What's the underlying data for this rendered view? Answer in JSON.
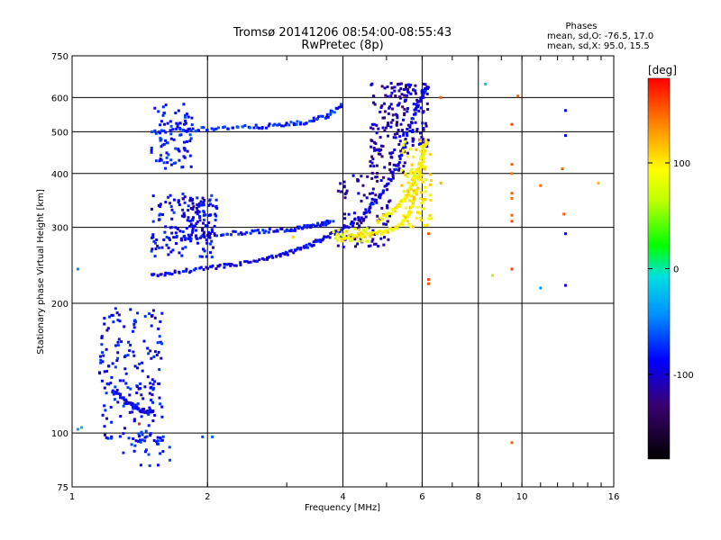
{
  "chart_data": {
    "type": "scatter",
    "title": "Tromsø 20141206 08:54:00-08:55:43",
    "subtitle": "RwPretec (8p)",
    "xlabel": "Frequency [MHz]",
    "ylabel": "Stationary phase Virtual Height [km]",
    "x_scale": "log",
    "y_scale": "log",
    "xlim": [
      1,
      16
    ],
    "ylim": [
      75,
      750
    ],
    "x_ticks": [
      1,
      2,
      4,
      6,
      8,
      10,
      16
    ],
    "y_ticks": [
      75,
      100,
      200,
      300,
      400,
      500,
      600,
      750
    ],
    "grid": true,
    "stats": {
      "heading": "Phases",
      "line_o": "mean, sd,O: -76.5, 17.0",
      "line_x": "mean, sd,X:  95.0, 15.5"
    },
    "colorbar": {
      "label": "[deg]",
      "ticks": [
        {
          "value": 100,
          "label": "100"
        },
        {
          "value": 0,
          "label": "0"
        },
        {
          "value": -100,
          "label": "-100"
        }
      ],
      "range": [
        -180,
        180
      ]
    },
    "series": [
      {
        "traces": [
          {
            "x": [
              1.5,
              1.7,
              2.0,
              2.3,
              2.7,
              3.0,
              3.3,
              3.6,
              4.0,
              4.4,
              4.8,
              5.2,
              5.5,
              5.8,
              6.0,
              6.2
            ],
            "y": [
              232,
              236,
              241,
              246,
              253,
              261,
              270,
              282,
              296,
              318,
              350,
              400,
              470,
              560,
              610,
              640
            ],
            "phase": -95
          },
          {
            "x": [
              1.6,
              1.9,
              2.2,
              2.6,
              3.0,
              3.3,
              3.6,
              3.8
            ],
            "y": [
              282,
              286,
              290,
              293,
              296,
              300,
              305,
              310
            ],
            "phase": -90
          },
          {
            "x": [
              1.5,
              1.8,
              2.1,
              2.5,
              2.9,
              3.3,
              3.7,
              4.0
            ],
            "y": [
              500,
              505,
              510,
              512,
              518,
              525,
              545,
              580
            ],
            "phase": -80
          },
          {
            "x": [
              1.25,
              1.32,
              1.4,
              1.47,
              1.52
            ],
            "y": [
              125,
              118,
              114,
              112,
              113
            ],
            "phase": -95
          }
        ],
        "clusters": [
          {
            "x": [
              1.5,
              1.85
            ],
            "y": [
              410,
              580
            ],
            "count": 90,
            "phase": -85
          },
          {
            "x": [
              1.5,
              2.1
            ],
            "y": [
              255,
              360
            ],
            "count": 120,
            "phase": -90
          },
          {
            "x": [
              1.75,
              2.05
            ],
            "y": [
              280,
              360
            ],
            "count": 60,
            "phase": -95
          },
          {
            "x": [
              1.15,
              1.6
            ],
            "y": [
              95,
              195
            ],
            "count": 180,
            "phase": -88
          },
          {
            "x": [
              1.35,
              1.65
            ],
            "y": [
              84,
              100
            ],
            "count": 30,
            "phase": -80
          },
          {
            "x": [
              3.9,
              5.1
            ],
            "y": [
              270,
              400
            ],
            "count": 100,
            "phase": -110
          },
          {
            "x": [
              4.6,
              5.6
            ],
            "y": [
              400,
              650
            ],
            "count": 140,
            "phase": -112
          },
          {
            "x": [
              5.5,
              6.2
            ],
            "y": [
              460,
              650
            ],
            "count": 70,
            "phase": -105
          }
        ]
      },
      {
        "traces": [
          {
            "x": [
              4.1,
              4.5,
              4.9,
              5.3,
              5.6,
              5.8,
              6.0,
              6.1
            ],
            "y": [
              285,
              287,
              292,
              300,
              320,
              360,
              420,
              480
            ],
            "phase": 100
          },
          {
            "x": [
              4.8,
              5.2,
              5.5,
              5.7,
              5.9,
              6.05
            ],
            "y": [
              310,
              330,
              350,
              380,
              420,
              470
            ],
            "phase": 95
          }
        ],
        "clusters": [
          {
            "x": [
              5.4,
              6.3
            ],
            "y": [
              300,
              480
            ],
            "count": 90,
            "phase": 100
          },
          {
            "x": [
              3.8,
              4.6
            ],
            "y": [
              278,
              300
            ],
            "count": 40,
            "phase": 90
          }
        ]
      },
      {
        "points": [
          {
            "x": 8.3,
            "y": 645,
            "phase": -20
          },
          {
            "x": 8.6,
            "y": 232,
            "phase": 60
          },
          {
            "x": 9.5,
            "y": 520,
            "phase": 160
          },
          {
            "x": 9.5,
            "y": 420,
            "phase": 150
          },
          {
            "x": 9.5,
            "y": 400,
            "phase": 140
          },
          {
            "x": 9.5,
            "y": 360,
            "phase": 150
          },
          {
            "x": 9.5,
            "y": 350,
            "phase": 145
          },
          {
            "x": 9.5,
            "y": 320,
            "phase": 150
          },
          {
            "x": 9.5,
            "y": 310,
            "phase": 155
          },
          {
            "x": 9.5,
            "y": 240,
            "phase": 160
          },
          {
            "x": 9.5,
            "y": 95,
            "phase": 150
          },
          {
            "x": 9.8,
            "y": 605,
            "phase": 150
          },
          {
            "x": 11.0,
            "y": 375,
            "phase": 145
          },
          {
            "x": 11.0,
            "y": 217,
            "phase": -40
          },
          {
            "x": 12.3,
            "y": 410,
            "phase": 150
          },
          {
            "x": 12.4,
            "y": 322,
            "phase": 150
          },
          {
            "x": 12.5,
            "y": 560,
            "phase": -95
          },
          {
            "x": 12.5,
            "y": 490,
            "phase": -90
          },
          {
            "x": 12.5,
            "y": 290,
            "phase": -100
          },
          {
            "x": 12.5,
            "y": 220,
            "phase": -105
          },
          {
            "x": 14.8,
            "y": 380,
            "phase": 120
          },
          {
            "x": 1.03,
            "y": 240,
            "phase": -50
          },
          {
            "x": 1.03,
            "y": 102,
            "phase": -40
          },
          {
            "x": 1.05,
            "y": 103,
            "phase": -30
          },
          {
            "x": 1.41,
            "y": 105,
            "phase": 170
          },
          {
            "x": 1.3,
            "y": 90,
            "phase": -80
          },
          {
            "x": 1.95,
            "y": 98,
            "phase": -70
          },
          {
            "x": 2.05,
            "y": 98,
            "phase": -60
          },
          {
            "x": 6.2,
            "y": 290,
            "phase": 150
          },
          {
            "x": 6.2,
            "y": 227,
            "phase": 155
          },
          {
            "x": 6.2,
            "y": 222,
            "phase": 150
          },
          {
            "x": 6.6,
            "y": 600,
            "phase": 150
          },
          {
            "x": 6.6,
            "y": 380,
            "phase": 120
          },
          {
            "x": 3.1,
            "y": 285,
            "phase": 110
          }
        ]
      }
    ]
  }
}
